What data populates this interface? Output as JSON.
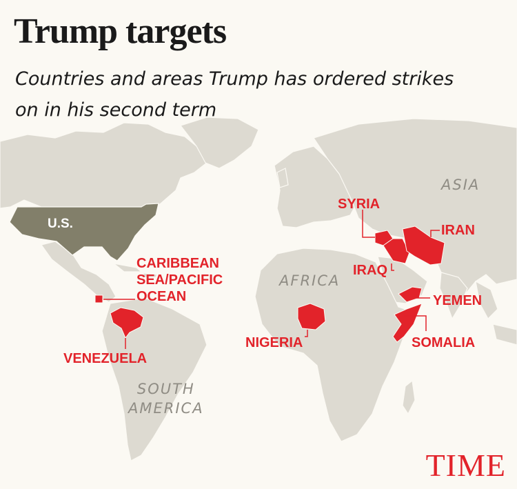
{
  "header": {
    "title": "Trump targets",
    "subtitle": "Countries and areas Trump has ordered strikes on in his second term"
  },
  "map": {
    "highlighted_home": {
      "label": "U.S.",
      "color": "#827f6a"
    },
    "targets": [
      {
        "key": "caribbean",
        "label": "CARIBBEAN\nSEA/PACIFIC\nOCEAN"
      },
      {
        "key": "venezuela",
        "label": "VENEZUELA"
      },
      {
        "key": "nigeria",
        "label": "NIGERIA"
      },
      {
        "key": "syria",
        "label": "SYRIA"
      },
      {
        "key": "iraq",
        "label": "IRAQ"
      },
      {
        "key": "iran",
        "label": "IRAN"
      },
      {
        "key": "yemen",
        "label": "YEMEN"
      },
      {
        "key": "somalia",
        "label": "SOMALIA"
      }
    ],
    "regions": [
      {
        "key": "asia",
        "label": "ASIA"
      },
      {
        "key": "africa",
        "label": "AFRICA"
      },
      {
        "key": "south_america",
        "label": "SOUTH\nAMERICA"
      }
    ],
    "colors": {
      "land": "#dddad1",
      "target": "#e2232a",
      "background": "#fbf9f3"
    }
  },
  "branding": {
    "logo": "TIME"
  }
}
